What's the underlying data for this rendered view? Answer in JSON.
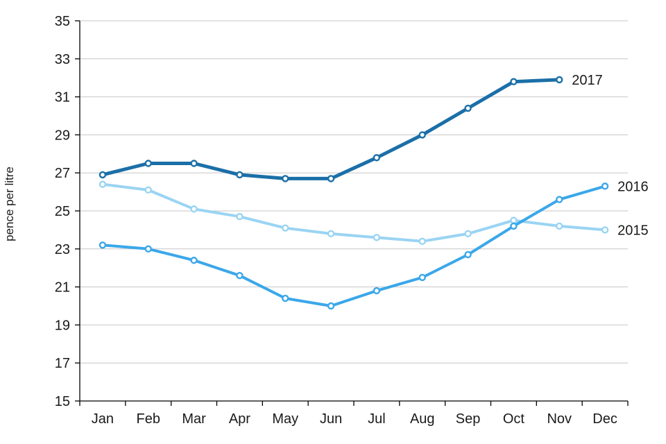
{
  "chart_data": {
    "type": "line",
    "title": "",
    "xlabel": "",
    "ylabel": "pence per litre",
    "ylim": [
      15,
      35
    ],
    "ytick_step": 2,
    "grid": true,
    "legend_position": "line-end-labels",
    "axis_color": "#000000",
    "grid_color": "#c6c6c6",
    "text_color": "#1a1a1a",
    "x": [
      "Jan",
      "Feb",
      "Mar",
      "Apr",
      "May",
      "Jun",
      "Jul",
      "Aug",
      "Sep",
      "Oct",
      "Nov",
      "Dec"
    ],
    "series": [
      {
        "name": "2017",
        "color": "#1b6fa8",
        "line_width": 5,
        "values": [
          26.9,
          27.5,
          27.5,
          26.9,
          26.7,
          26.7,
          27.8,
          29.0,
          30.4,
          31.8,
          31.9,
          null
        ]
      },
      {
        "name": "2016",
        "color": "#3ba7ea",
        "line_width": 4,
        "values": [
          23.2,
          23.0,
          22.4,
          21.6,
          20.4,
          20.0,
          20.8,
          21.5,
          22.7,
          24.2,
          25.6,
          26.3
        ]
      },
      {
        "name": "2015",
        "color": "#9ad4f3",
        "line_width": 4,
        "values": [
          26.4,
          26.1,
          25.1,
          24.7,
          24.1,
          23.8,
          23.6,
          23.4,
          23.8,
          24.5,
          24.2,
          24.0
        ]
      }
    ]
  }
}
